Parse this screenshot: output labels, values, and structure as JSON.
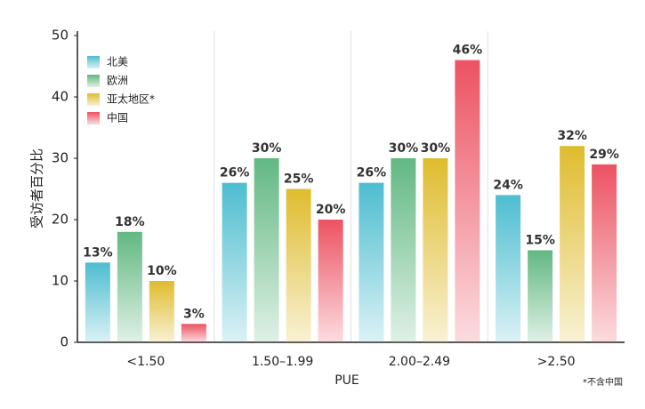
{
  "chart_data": {
    "type": "bar",
    "xlabel": "PUE",
    "ylabel": "受访者百分比",
    "footnote": "*不含中国",
    "categories": [
      "<1.50",
      "1.50–1.99",
      "2.00–2.49",
      ">2.50"
    ],
    "series": [
      {
        "name": "北美",
        "color": "#4dbdd0",
        "values": [
          13,
          26,
          26,
          24
        ],
        "value_labels": [
          "13%",
          "26%",
          "26%",
          "24%"
        ]
      },
      {
        "name": "欧洲",
        "color": "#62b882",
        "values": [
          18,
          30,
          30,
          15
        ],
        "value_labels": [
          "18%",
          "30%",
          "30%",
          "15%"
        ]
      },
      {
        "name": "亚太地区*",
        "color": "#dfbc2e",
        "values": [
          10,
          25,
          30,
          32
        ],
        "value_labels": [
          "10%",
          "25%",
          "30%",
          "32%"
        ]
      },
      {
        "name": "中国",
        "color": "#ec5262",
        "values": [
          3,
          20,
          46,
          29
        ],
        "value_labels": [
          "3%",
          "20%",
          "46%",
          "29%"
        ]
      }
    ],
    "ylim": [
      0,
      50
    ],
    "yticks": [
      0,
      10,
      20,
      30,
      40,
      50
    ],
    "legend": "upper left"
  }
}
